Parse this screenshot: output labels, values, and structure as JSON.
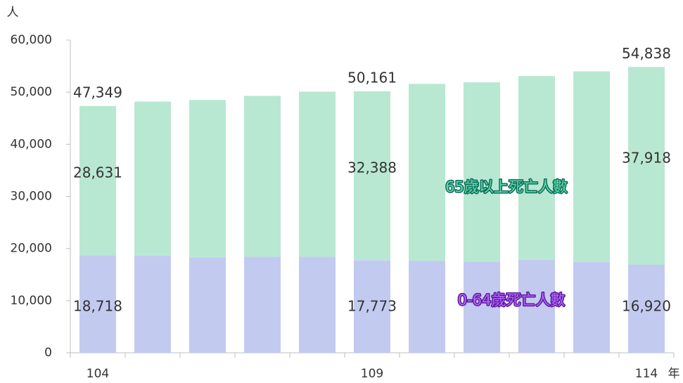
{
  "chart_data": {
    "type": "stacked_bar",
    "y_axis_label": "人",
    "x_axis_label": "年",
    "categories": [
      "104",
      null,
      null,
      null,
      null,
      "109",
      null,
      null,
      null,
      null,
      "114"
    ],
    "series": [
      {
        "name": "0-64歲死亡人數",
        "color": "#c3caf0",
        "label_color": "#b266f5",
        "label_stroke": "#5b1a9e",
        "values": [
          18718,
          18600,
          18300,
          18450,
          18450,
          17773,
          17650,
          17500,
          17800,
          17400,
          16920
        ],
        "value_labels": [
          "18,718",
          null,
          null,
          null,
          null,
          "17,773",
          null,
          null,
          null,
          null,
          "16,920"
        ]
      },
      {
        "name": "65歲以上死亡人數",
        "color": "#b8e8d2",
        "label_color": "#5fd8a8",
        "label_stroke": "#0b6a5a",
        "values": [
          28631,
          29600,
          30200,
          30850,
          31650,
          32388,
          33950,
          34400,
          35300,
          36600,
          37918
        ],
        "value_labels": [
          "28,631",
          null,
          null,
          null,
          null,
          "32,388",
          null,
          null,
          null,
          null,
          "37,918"
        ]
      }
    ],
    "total_labels": [
      "47,349",
      null,
      null,
      null,
      null,
      "50,161",
      null,
      null,
      null,
      null,
      "54,838"
    ],
    "ylim": [
      0,
      60000
    ],
    "yticks": [
      0,
      {
        "value": 10000,
        "label": "10,000"
      },
      {
        "value": 20000,
        "label": "20,000"
      },
      {
        "value": 30000,
        "label": "30,000"
      },
      {
        "value": 40000,
        "label": "40,000"
      },
      {
        "value": 50000,
        "label": "50,000"
      },
      {
        "value": 60000,
        "label": "60,000"
      }
    ]
  }
}
